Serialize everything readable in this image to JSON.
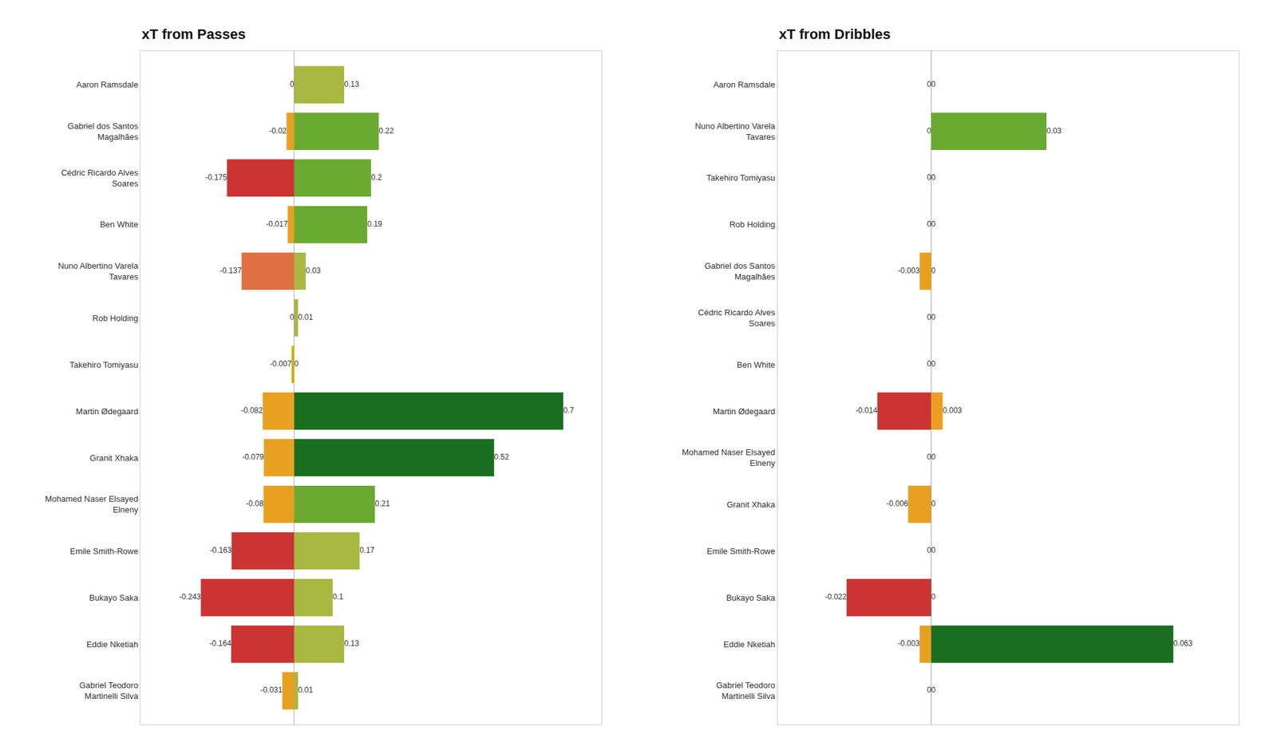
{
  "chart_data": [
    {
      "type": "bar",
      "title": "xT from Passes",
      "orientation": "horizontal",
      "stacked": true,
      "data_labels": true,
      "tick_labels": "y",
      "grid": false,
      "categories": [
        "Aaron Ramsdale",
        "Gabriel dos Santos\nMagalhães",
        "Cédric Ricardo Alves\nSoares",
        "Ben White",
        "Nuno Albertino Varela\nTavares",
        "Rob Holding",
        "Takehiro Tomiyasu",
        "Martin Ødegaard",
        "Granit Xhaka",
        "Mohamed Naser Elsayed\nElneny",
        "Emile Smith-Rowe",
        "Bukayo Saka",
        "Eddie Nketiah",
        "Gabriel Teodoro\nMartinelli Silva"
      ],
      "xlim": [
        -0.4,
        0.8
      ],
      "series": [
        {
          "colors": [
            "#c8b400",
            "#e8a020",
            "#cc3333",
            "#e8a020",
            "#e07040",
            "#c8b400",
            "#c8b400",
            "#e8a020",
            "#e8a020",
            "#e8a020",
            "#cc3333",
            "#cc3333",
            "#cc3333",
            "#e8a020"
          ],
          "values": [
            0,
            -0.02,
            -0.175,
            -0.017,
            -0.137,
            0,
            -0.007,
            -0.082,
            -0.079,
            -0.08,
            -0.163,
            -0.243,
            -0.164,
            -0.031
          ]
        },
        {
          "colors": [
            "#a8b840",
            "#6aaa30",
            "#6aaa30",
            "#6aaa30",
            "#a8b840",
            "#a8b840",
            "#a8b840",
            "#1a6e20",
            "#1a6e20",
            "#6aaa30",
            "#a8b840",
            "#a8b840",
            "#a8b840",
            "#a8b840"
          ],
          "values": [
            0.13,
            0.22,
            0.2,
            0.19,
            0.03,
            0.01,
            0.0,
            0.7,
            0.52,
            0.21,
            0.17,
            0.1,
            0.13,
            0.01
          ]
        }
      ]
    },
    {
      "type": "bar",
      "title": "xT from Dribbles",
      "orientation": "horizontal",
      "stacked": true,
      "data_labels": true,
      "tick_labels": "y",
      "grid": false,
      "categories": [
        "Aaron Ramsdale",
        "Nuno Albertino Varela\nTavares",
        "Takehiro Tomiyasu",
        "Rob Holding",
        "Gabriel dos Santos\nMagalhães",
        "Cédric Ricardo Alves\nSoares",
        "Ben White",
        "Martin Ødegaard",
        "Mohamed Naser Elsayed\nElneny",
        "Granit Xhaka",
        "Emile Smith-Rowe",
        "Bukayo Saka",
        "Eddie Nketiah",
        "Gabriel Teodoro\nMartinelli Silva"
      ],
      "xlim": [
        -0.04,
        0.08
      ],
      "series": [
        {
          "colors": [
            "#c8b400",
            "#c8b400",
            "#c8b400",
            "#c8b400",
            "#e8a020",
            "#c8b400",
            "#c8b400",
            "#cc3333",
            "#c8b400",
            "#e8a020",
            "#c8b400",
            "#cc3333",
            "#e8a020",
            "#c8b400"
          ],
          "values": [
            0,
            0,
            0,
            0,
            -0.003,
            0,
            0,
            -0.014,
            0,
            -0.006,
            0,
            -0.022,
            -0.003,
            0
          ]
        },
        {
          "colors": [
            "#c8b400",
            "#6aaa30",
            "#c8b400",
            "#c8b400",
            "#c8b400",
            "#c8b400",
            "#c8b400",
            "#e8a020",
            "#c8b400",
            "#c8b400",
            "#c8b400",
            "#c8b400",
            "#1a6e20",
            "#c8b400"
          ],
          "values": [
            0,
            0.03,
            0,
            0,
            0,
            0,
            0,
            0.003,
            0,
            0,
            0,
            0,
            0.063,
            0
          ]
        }
      ]
    }
  ]
}
